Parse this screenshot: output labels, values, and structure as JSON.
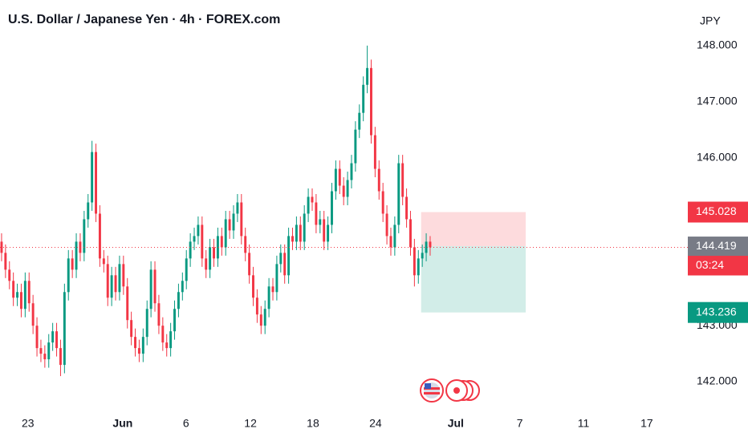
{
  "chart_data": {
    "type": "candlestick",
    "title": "U.S. Dollar / Japanese Yen · 4h · FOREX.com",
    "currency": "JPY",
    "up_color": "#089981",
    "down_color": "#f23645",
    "ylim": [
      141.514,
      148.814
    ],
    "yticks": [
      {
        "value": 142,
        "label": "142.000"
      },
      {
        "value": 143,
        "label": "143.000"
      },
      {
        "value": 144,
        "label": "144.000"
      },
      {
        "value": 145,
        "label": "145.000"
      },
      {
        "value": 146,
        "label": "146.000"
      },
      {
        "value": 147,
        "label": "147.000"
      },
      {
        "value": 148,
        "label": "148.000"
      }
    ],
    "xlim": [
      -0.4,
      173.1
    ],
    "xticks": [
      {
        "value": 6.7,
        "label": "23"
      },
      {
        "value": 30.8,
        "label": "Jun"
      },
      {
        "value": 46.9,
        "label": "6"
      },
      {
        "value": 63.3,
        "label": "12"
      },
      {
        "value": 79.2,
        "label": "18"
      },
      {
        "value": 95.1,
        "label": "24"
      },
      {
        "value": 115.5,
        "label": "Jul"
      },
      {
        "value": 131.8,
        "label": "7"
      },
      {
        "value": 148,
        "label": "11"
      },
      {
        "value": 164.1,
        "label": "17"
      }
    ],
    "open": [
      144.5,
      144.3,
      144.0,
      143.8,
      143.5,
      143.6,
      143.3,
      143.8,
      143.4,
      143.0,
      142.6,
      142.5,
      142.4,
      142.7,
      142.9,
      142.6,
      142.3,
      143.6,
      144.2,
      144.0,
      144.5,
      144.3,
      144.9,
      145.2,
      146.1,
      145.0,
      144.2,
      144.1,
      143.5,
      143.9,
      143.6,
      144.1,
      143.7,
      143.1,
      142.8,
      142.6,
      142.5,
      142.8,
      143.3,
      144.0,
      143.4,
      143.0,
      142.7,
      142.6,
      142.9,
      143.3,
      143.6,
      143.8,
      144.2,
      144.5,
      144.6,
      144.8,
      144.2,
      144.0,
      144.4,
      144.2,
      144.6,
      144.4,
      144.9,
      144.7,
      145.0,
      145.2,
      144.6,
      144.3,
      143.9,
      143.5,
      143.2,
      143.0,
      143.3,
      143.7,
      143.6,
      144.1,
      144.3,
      143.9,
      144.6,
      144.5,
      144.8,
      144.5,
      145.0,
      145.3,
      145.2,
      144.8,
      144.9,
      144.5,
      144.8,
      145.4,
      145.8,
      145.5,
      145.3,
      145.6,
      145.9,
      146.5,
      146.8,
      147.3,
      147.6,
      146.4,
      145.8,
      145.4,
      145.0,
      144.6,
      144.4,
      144.8,
      145.9,
      145.3,
      144.9,
      144.4,
      143.9,
      144.2,
      144.3,
      144.5
    ],
    "high": [
      144.65,
      144.45,
      144.15,
      143.95,
      143.75,
      143.75,
      143.95,
      143.95,
      143.55,
      143.15,
      142.75,
      142.65,
      142.85,
      143.05,
      143.05,
      142.75,
      143.75,
      144.35,
      144.35,
      144.65,
      144.65,
      145.05,
      145.35,
      146.3,
      146.25,
      145.15,
      144.35,
      144.25,
      144.05,
      144.05,
      144.25,
      144.25,
      143.85,
      143.25,
      142.95,
      142.75,
      142.95,
      143.45,
      144.15,
      144.15,
      143.55,
      143.15,
      142.85,
      143.05,
      143.45,
      143.75,
      143.95,
      144.35,
      144.65,
      144.75,
      144.95,
      144.95,
      144.35,
      144.55,
      144.55,
      144.75,
      144.75,
      145.05,
      145.05,
      145.15,
      145.35,
      145.35,
      144.75,
      144.45,
      144.05,
      143.65,
      143.35,
      143.45,
      143.85,
      143.85,
      144.25,
      144.45,
      144.45,
      144.75,
      144.75,
      144.95,
      144.95,
      145.15,
      145.45,
      145.45,
      145.35,
      145.05,
      145.05,
      144.95,
      145.55,
      145.95,
      145.95,
      145.65,
      145.75,
      146.05,
      146.65,
      146.95,
      147.45,
      148.0,
      147.75,
      146.55,
      145.95,
      145.55,
      145.15,
      144.75,
      144.95,
      146.05,
      146.05,
      145.45,
      145.05,
      144.55,
      144.35,
      144.45,
      144.65,
      144.6
    ],
    "low": [
      144.15,
      143.85,
      143.65,
      143.35,
      143.35,
      143.15,
      143.15,
      143.25,
      142.85,
      142.45,
      142.35,
      142.25,
      142.25,
      142.55,
      142.45,
      142.1,
      142.15,
      143.45,
      143.85,
      143.85,
      144.15,
      144.15,
      144.75,
      145.05,
      144.85,
      144.05,
      143.95,
      143.35,
      143.35,
      143.45,
      143.45,
      143.55,
      142.95,
      142.65,
      142.45,
      142.35,
      142.35,
      142.65,
      143.15,
      143.25,
      142.85,
      142.55,
      142.45,
      142.45,
      142.75,
      143.15,
      143.45,
      143.65,
      144.05,
      144.35,
      144.45,
      144.05,
      143.85,
      143.85,
      144.05,
      144.05,
      144.25,
      144.25,
      144.55,
      144.55,
      144.85,
      144.45,
      144.15,
      143.75,
      143.35,
      143.05,
      142.85,
      142.85,
      143.15,
      143.45,
      143.45,
      143.95,
      143.75,
      143.75,
      144.35,
      144.35,
      144.35,
      144.35,
      144.85,
      145.05,
      144.65,
      144.65,
      144.35,
      144.35,
      144.65,
      145.25,
      145.35,
      145.15,
      145.15,
      145.45,
      145.75,
      146.35,
      146.65,
      147.15,
      146.25,
      145.65,
      145.25,
      144.85,
      144.45,
      144.25,
      144.25,
      144.65,
      145.15,
      144.75,
      144.25,
      143.7,
      143.75,
      144.05,
      144.15,
      144.25
    ],
    "close": [
      144.3,
      144.0,
      143.8,
      143.5,
      143.6,
      143.3,
      143.8,
      143.4,
      143.0,
      142.6,
      142.5,
      142.4,
      142.7,
      142.9,
      142.6,
      142.3,
      143.6,
      144.2,
      144.0,
      144.5,
      144.3,
      144.9,
      145.2,
      146.1,
      145.0,
      144.2,
      144.1,
      143.5,
      143.9,
      143.6,
      144.1,
      143.7,
      143.1,
      142.8,
      142.6,
      142.5,
      142.8,
      143.3,
      144.0,
      143.4,
      143.0,
      142.7,
      142.6,
      142.9,
      143.3,
      143.6,
      143.8,
      144.2,
      144.5,
      144.6,
      144.8,
      144.2,
      144.0,
      144.4,
      144.2,
      144.6,
      144.4,
      144.9,
      144.7,
      145.0,
      145.2,
      144.6,
      144.3,
      143.9,
      143.5,
      143.2,
      143.0,
      143.3,
      143.7,
      143.6,
      144.1,
      144.3,
      143.9,
      144.6,
      144.5,
      144.8,
      144.5,
      145.0,
      145.3,
      145.2,
      144.8,
      144.9,
      144.5,
      144.8,
      145.4,
      145.8,
      145.5,
      145.3,
      145.6,
      145.9,
      146.5,
      146.8,
      147.3,
      147.6,
      146.4,
      145.8,
      145.4,
      145.0,
      144.6,
      144.4,
      144.8,
      145.9,
      145.3,
      144.9,
      144.4,
      143.9,
      144.2,
      144.3,
      144.5,
      144.398
    ],
    "position": {
      "x_start": 106.7,
      "x_end": 133.3,
      "stop": 145.028,
      "entry": 144.419,
      "target": 143.236
    },
    "last_price": 144.398,
    "countdown": "03:24"
  }
}
